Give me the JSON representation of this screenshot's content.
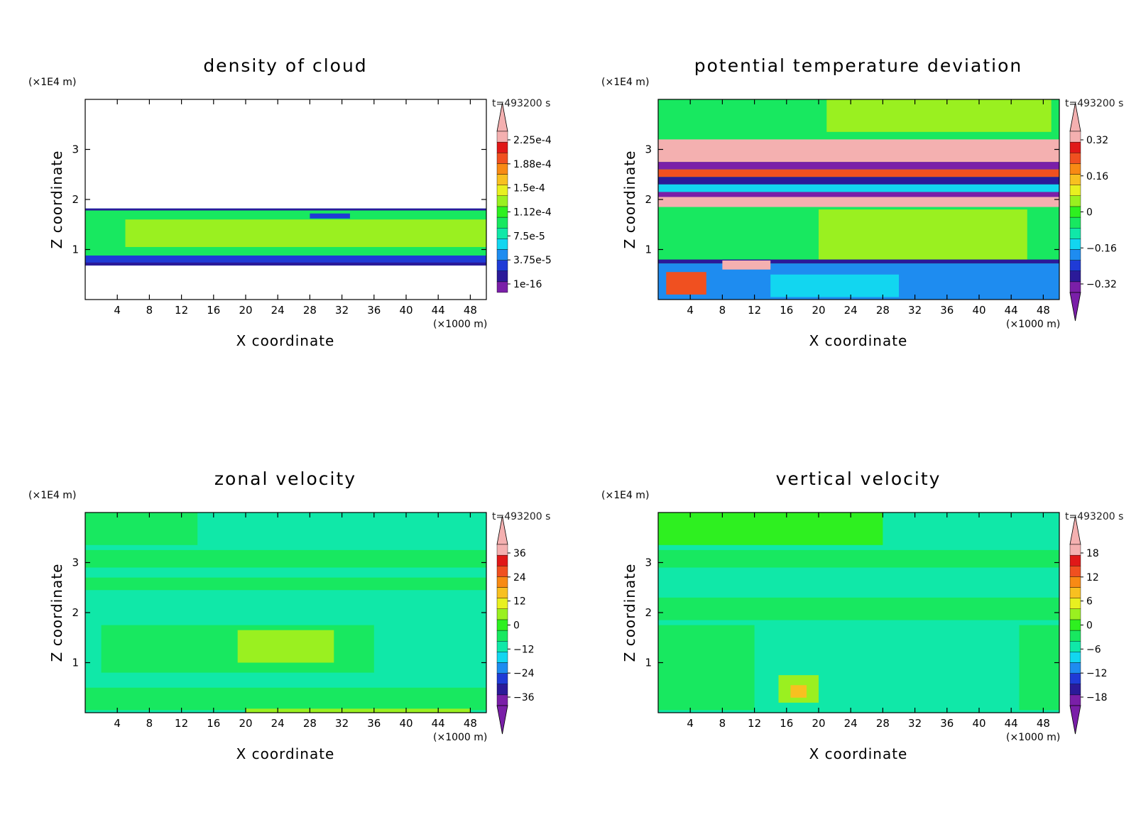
{
  "colormap": [
    "#7a1fa8",
    "#2b1a99",
    "#1f3bd6",
    "#1e8cf0",
    "#12d6f0",
    "#10e8a8",
    "#18e860",
    "#2ef020",
    "#9af020",
    "#e8f020",
    "#f8c020",
    "#f88a14",
    "#f05020",
    "#e01818",
    "#f4b0b0"
  ],
  "chart_data": [
    {
      "id": "density",
      "type": "heatmap",
      "title": "density of cloud",
      "xlabel": "X coordinate",
      "ylabel": "Z coordinate",
      "x_unit": "(×1000 m)",
      "y_unit": "(×1E4 m)",
      "time_label": "t=493200 s",
      "xlim": [
        0,
        50
      ],
      "ylim": [
        0,
        4
      ],
      "xticks": [
        4,
        8,
        12,
        16,
        20,
        24,
        28,
        32,
        36,
        40,
        44,
        48
      ],
      "yticks": [
        1,
        2,
        3
      ],
      "colorbar_labels": [
        "2.25e-4",
        "1.88e-4",
        "1.5e-4",
        "1.12e-4",
        "7.5e-5",
        "3.75e-5",
        "1e-16"
      ],
      "colorbar_arrows": "top",
      "layers": [
        {
          "color": "#12d6f0",
          "z0": 0.68,
          "z1": 1.82
        },
        {
          "color": "#18e860",
          "z0": 0.85,
          "z1": 1.78
        },
        {
          "color": "#9af020",
          "z0": 1.05,
          "z1": 1.6,
          "x0": 5,
          "x1": 50
        },
        {
          "color": "#1f3bd6",
          "z0": 0.72,
          "z1": 0.88
        },
        {
          "color": "#2b1a99",
          "z0": 0.68,
          "z1": 0.74
        },
        {
          "color": "#2b1a99",
          "z0": 1.78,
          "z1": 1.82
        },
        {
          "color": "#1f3bd6",
          "z0": 1.62,
          "z1": 1.72,
          "x0": 28,
          "x1": 33
        }
      ]
    },
    {
      "id": "theta",
      "type": "heatmap",
      "title": "potential temperature deviation",
      "xlabel": "X coordinate",
      "ylabel": "Z coordinate",
      "x_unit": "(×1000 m)",
      "y_unit": "(×1E4 m)",
      "time_label": "t=493200 s",
      "xlim": [
        0,
        50
      ],
      "ylim": [
        0,
        4
      ],
      "xticks": [
        4,
        8,
        12,
        16,
        20,
        24,
        28,
        32,
        36,
        40,
        44,
        48
      ],
      "yticks": [
        1,
        2,
        3
      ],
      "colorbar_labels": [
        "0.32",
        "0.16",
        "0",
        "-0.16",
        "-0.32"
      ],
      "colorbar_arrows": "both",
      "layers": [
        {
          "color": "#18e860",
          "z0": 0,
          "z1": 4
        },
        {
          "color": "#9af020",
          "z0": 3.35,
          "z1": 4,
          "x0": 21,
          "x1": 49
        },
        {
          "color": "#9af020",
          "z0": 0.8,
          "z1": 1.8,
          "x0": 20,
          "x1": 46
        },
        {
          "color": "#f4b0b0",
          "z0": 2.75,
          "z1": 3.2
        },
        {
          "color": "#7a1fa8",
          "z0": 2.6,
          "z1": 2.75
        },
        {
          "color": "#f05020",
          "z0": 2.45,
          "z1": 2.6
        },
        {
          "color": "#2b1a99",
          "z0": 2.3,
          "z1": 2.45
        },
        {
          "color": "#12d6f0",
          "z0": 2.15,
          "z1": 2.3
        },
        {
          "color": "#f4b0b0",
          "z0": 1.85,
          "z1": 2.05
        },
        {
          "color": "#7a1fa8",
          "z0": 2.05,
          "z1": 2.15
        },
        {
          "color": "#2b1a99",
          "z0": 0.72,
          "z1": 0.8
        },
        {
          "color": "#1e8cf0",
          "z0": 0,
          "z1": 0.72
        },
        {
          "color": "#12d6f0",
          "z0": 0.05,
          "z1": 0.5,
          "x0": 14,
          "x1": 30
        },
        {
          "color": "#f05020",
          "z0": 0.1,
          "z1": 0.55,
          "x0": 1,
          "x1": 6
        },
        {
          "color": "#f4b0b0",
          "z0": 0.6,
          "z1": 0.78,
          "x0": 8,
          "x1": 14
        }
      ]
    },
    {
      "id": "zonal",
      "type": "heatmap",
      "title": "zonal velocity",
      "xlabel": "X coordinate",
      "ylabel": "Z coordinate",
      "x_unit": "(×1000 m)",
      "y_unit": "(×1E4 m)",
      "time_label": "t=493200 s",
      "xlim": [
        0,
        50
      ],
      "ylim": [
        0,
        4
      ],
      "xticks": [
        4,
        8,
        12,
        16,
        20,
        24,
        28,
        32,
        36,
        40,
        44,
        48
      ],
      "yticks": [
        1,
        2,
        3
      ],
      "colorbar_labels": [
        "36",
        "24",
        "12",
        "0",
        "-12",
        "-24",
        "-36"
      ],
      "colorbar_arrows": "both",
      "layers": [
        {
          "color": "#10e8a8",
          "z0": 0,
          "z1": 4
        },
        {
          "color": "#18e860",
          "z0": 3.35,
          "z1": 4,
          "x0": 0,
          "x1": 14
        },
        {
          "color": "#18e860",
          "z0": 2.9,
          "z1": 3.25
        },
        {
          "color": "#18e860",
          "z0": 2.45,
          "z1": 2.7
        },
        {
          "color": "#18e860",
          "z0": 0.8,
          "z1": 1.75,
          "x0": 2,
          "x1": 36
        },
        {
          "color": "#9af020",
          "z0": 1.0,
          "z1": 1.65,
          "x0": 19,
          "x1": 31
        },
        {
          "color": "#18e860",
          "z0": 0.05,
          "z1": 0.5
        },
        {
          "color": "#9af020",
          "z0": 0.0,
          "z1": 0.08,
          "x0": 20,
          "x1": 48
        }
      ]
    },
    {
      "id": "vertical",
      "type": "heatmap",
      "title": "vertical velocity",
      "xlabel": "X coordinate",
      "ylabel": "Z coordinate",
      "x_unit": "(×1000 m)",
      "y_unit": "(×1E4 m)",
      "time_label": "t=493200 s",
      "xlim": [
        0,
        50
      ],
      "ylim": [
        0,
        4
      ],
      "xticks": [
        4,
        8,
        12,
        16,
        20,
        24,
        28,
        32,
        36,
        40,
        44,
        48
      ],
      "yticks": [
        1,
        2,
        3
      ],
      "colorbar_labels": [
        "18",
        "12",
        "6",
        "0",
        "-6",
        "-12",
        "-18"
      ],
      "colorbar_arrows": "both",
      "layers": [
        {
          "color": "#10e8a8",
          "z0": 0,
          "z1": 4
        },
        {
          "color": "#2ef020",
          "z0": 3.35,
          "z1": 4,
          "x0": 0,
          "x1": 28
        },
        {
          "color": "#18e860",
          "z0": 2.9,
          "z1": 3.25
        },
        {
          "color": "#18e860",
          "z0": 1.85,
          "z1": 2.3
        },
        {
          "color": "#18e860",
          "z0": 0.05,
          "z1": 1.75,
          "x0": 0,
          "x1": 12
        },
        {
          "color": "#18e860",
          "z0": 0.05,
          "z1": 1.75,
          "x0": 45,
          "x1": 50
        },
        {
          "color": "#9af020",
          "z0": 0.2,
          "z1": 0.75,
          "x0": 15,
          "x1": 20
        },
        {
          "color": "#f8c020",
          "z0": 0.3,
          "z1": 0.55,
          "x0": 16.5,
          "x1": 18.5
        }
      ]
    }
  ]
}
